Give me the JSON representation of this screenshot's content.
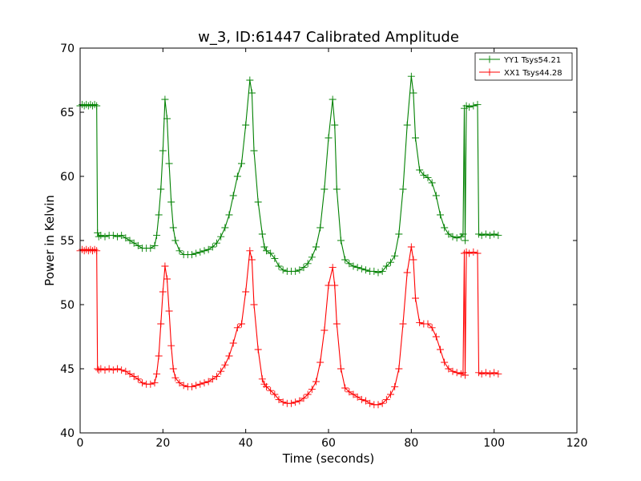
{
  "chart_data": {
    "type": "line",
    "title": "w_3, ID:61447 Calibrated Amplitude",
    "xlabel": "Time (seconds)",
    "ylabel": "Power in Kelvin",
    "xlim": [
      0,
      120
    ],
    "ylim": [
      40,
      70
    ],
    "xticks": [
      "0",
      "20",
      "40",
      "60",
      "80",
      "100",
      "120"
    ],
    "yticks": [
      "40",
      "45",
      "50",
      "55",
      "60",
      "65",
      "70"
    ],
    "grid": false,
    "legend_position": "top-right",
    "marker": "plus",
    "series": [
      {
        "name": "YY1 Tsys54.21",
        "color": "#008000",
        "points": [
          [
            0,
            65.5
          ],
          [
            0.5,
            65.6
          ],
          [
            1,
            65.5
          ],
          [
            1.5,
            65.6
          ],
          [
            2,
            65.5
          ],
          [
            2.5,
            65.6
          ],
          [
            3,
            65.5
          ],
          [
            3.5,
            65.6
          ],
          [
            4,
            65.5
          ],
          [
            4.2,
            55.6
          ],
          [
            4.5,
            55.3
          ],
          [
            5,
            55.4
          ],
          [
            6,
            55.3
          ],
          [
            7,
            55.4
          ],
          [
            8,
            55.4
          ],
          [
            9,
            55.3
          ],
          [
            10,
            55.4
          ],
          [
            11,
            55.2
          ],
          [
            12,
            55.0
          ],
          [
            13,
            54.8
          ],
          [
            14,
            54.6
          ],
          [
            15,
            54.4
          ],
          [
            16,
            54.4
          ],
          [
            17,
            54.4
          ],
          [
            18,
            54.6
          ],
          [
            18.5,
            55.4
          ],
          [
            19,
            57.0
          ],
          [
            19.5,
            59.0
          ],
          [
            20,
            62.0
          ],
          [
            20.5,
            66.0
          ],
          [
            21,
            64.5
          ],
          [
            21.5,
            61.0
          ],
          [
            22,
            58.0
          ],
          [
            22.5,
            56.0
          ],
          [
            23,
            55.0
          ],
          [
            24,
            54.2
          ],
          [
            25,
            53.9
          ],
          [
            26,
            53.9
          ],
          [
            27,
            53.9
          ],
          [
            28,
            54.0
          ],
          [
            29,
            54.1
          ],
          [
            30,
            54.2
          ],
          [
            31,
            54.3
          ],
          [
            32,
            54.5
          ],
          [
            33,
            54.8
          ],
          [
            34,
            55.3
          ],
          [
            35,
            56.0
          ],
          [
            36,
            57.0
          ],
          [
            37,
            58.5
          ],
          [
            38,
            60.0
          ],
          [
            39,
            61.0
          ],
          [
            40,
            64.0
          ],
          [
            41,
            67.5
          ],
          [
            41.5,
            66.5
          ],
          [
            42,
            62.0
          ],
          [
            43,
            58.0
          ],
          [
            44,
            55.5
          ],
          [
            44.5,
            54.5
          ],
          [
            45,
            54.2
          ],
          [
            46,
            54.0
          ],
          [
            47,
            53.6
          ],
          [
            48,
            53.0
          ],
          [
            49,
            52.7
          ],
          [
            50,
            52.6
          ],
          [
            51,
            52.6
          ],
          [
            52,
            52.6
          ],
          [
            53,
            52.7
          ],
          [
            54,
            52.9
          ],
          [
            55,
            53.2
          ],
          [
            56,
            53.7
          ],
          [
            57,
            54.5
          ],
          [
            58,
            56.0
          ],
          [
            59,
            59.0
          ],
          [
            60,
            63.0
          ],
          [
            61,
            66.0
          ],
          [
            61.5,
            64.0
          ],
          [
            62,
            59.0
          ],
          [
            63,
            55.0
          ],
          [
            64,
            53.5
          ],
          [
            65,
            53.2
          ],
          [
            66,
            53.0
          ],
          [
            67,
            52.9
          ],
          [
            68,
            52.8
          ],
          [
            69,
            52.7
          ],
          [
            70,
            52.6
          ],
          [
            71,
            52.6
          ],
          [
            72,
            52.5
          ],
          [
            73,
            52.6
          ],
          [
            74,
            53.0
          ],
          [
            75,
            53.3
          ],
          [
            76,
            53.8
          ],
          [
            77,
            55.5
          ],
          [
            78,
            59.0
          ],
          [
            79,
            64.0
          ],
          [
            80,
            67.8
          ],
          [
            80.5,
            66.5
          ],
          [
            81,
            63.0
          ],
          [
            82,
            60.5
          ],
          [
            83,
            60.1
          ],
          [
            84,
            59.9
          ],
          [
            85,
            59.5
          ],
          [
            86,
            58.5
          ],
          [
            87,
            57.0
          ],
          [
            88,
            56.0
          ],
          [
            89,
            55.5
          ],
          [
            90,
            55.3
          ],
          [
            91,
            55.2
          ],
          [
            92,
            55.3
          ],
          [
            92.5,
            55.5
          ],
          [
            92.8,
            65.3
          ],
          [
            93.0,
            55.0
          ],
          [
            93.3,
            65.5
          ],
          [
            94,
            65.4
          ],
          [
            95,
            65.5
          ],
          [
            96,
            65.6
          ],
          [
            96.3,
            55.5
          ],
          [
            97,
            55.4
          ],
          [
            98,
            55.5
          ],
          [
            99,
            55.4
          ],
          [
            100,
            55.5
          ],
          [
            101,
            55.4
          ]
        ]
      },
      {
        "name": "XX1 Tsys44.28",
        "color": "#ff0000",
        "points": [
          [
            0,
            54.2
          ],
          [
            0.5,
            54.3
          ],
          [
            1,
            54.2
          ],
          [
            1.5,
            54.3
          ],
          [
            2,
            54.2
          ],
          [
            2.5,
            54.3
          ],
          [
            3,
            54.2
          ],
          [
            3.5,
            54.3
          ],
          [
            4,
            54.2
          ],
          [
            4.2,
            45.0
          ],
          [
            4.5,
            44.9
          ],
          [
            5,
            45.0
          ],
          [
            6,
            44.9
          ],
          [
            7,
            45.0
          ],
          [
            8,
            44.9
          ],
          [
            9,
            45.0
          ],
          [
            10,
            44.9
          ],
          [
            11,
            44.8
          ],
          [
            12,
            44.6
          ],
          [
            13,
            44.4
          ],
          [
            14,
            44.2
          ],
          [
            15,
            43.9
          ],
          [
            16,
            43.8
          ],
          [
            17,
            43.8
          ],
          [
            18,
            43.9
          ],
          [
            18.5,
            44.6
          ],
          [
            19,
            46.0
          ],
          [
            19.5,
            48.5
          ],
          [
            20,
            51.0
          ],
          [
            20.5,
            53.0
          ],
          [
            21,
            52.0
          ],
          [
            21.5,
            49.5
          ],
          [
            22,
            46.8
          ],
          [
            22.5,
            45.0
          ],
          [
            23,
            44.3
          ],
          [
            24,
            43.9
          ],
          [
            25,
            43.7
          ],
          [
            26,
            43.6
          ],
          [
            27,
            43.6
          ],
          [
            28,
            43.7
          ],
          [
            29,
            43.8
          ],
          [
            30,
            43.9
          ],
          [
            31,
            44.0
          ],
          [
            32,
            44.2
          ],
          [
            33,
            44.4
          ],
          [
            34,
            44.8
          ],
          [
            35,
            45.3
          ],
          [
            36,
            46.0
          ],
          [
            37,
            47.0
          ],
          [
            38,
            48.2
          ],
          [
            39,
            48.5
          ],
          [
            40,
            51.0
          ],
          [
            41,
            54.2
          ],
          [
            41.5,
            53.5
          ],
          [
            42,
            50.0
          ],
          [
            43,
            46.5
          ],
          [
            44,
            44.2
          ],
          [
            44.5,
            43.8
          ],
          [
            45,
            43.6
          ],
          [
            46,
            43.3
          ],
          [
            47,
            43.0
          ],
          [
            48,
            42.6
          ],
          [
            49,
            42.4
          ],
          [
            50,
            42.3
          ],
          [
            51,
            42.3
          ],
          [
            52,
            42.4
          ],
          [
            53,
            42.5
          ],
          [
            54,
            42.7
          ],
          [
            55,
            43.0
          ],
          [
            56,
            43.4
          ],
          [
            57,
            44.0
          ],
          [
            58,
            45.5
          ],
          [
            59,
            48.0
          ],
          [
            60,
            51.5
          ],
          [
            61,
            52.9
          ],
          [
            61.5,
            51.5
          ],
          [
            62,
            48.5
          ],
          [
            63,
            45.0
          ],
          [
            64,
            43.5
          ],
          [
            65,
            43.2
          ],
          [
            66,
            43.0
          ],
          [
            67,
            42.8
          ],
          [
            68,
            42.6
          ],
          [
            69,
            42.5
          ],
          [
            70,
            42.3
          ],
          [
            71,
            42.2
          ],
          [
            72,
            42.2
          ],
          [
            73,
            42.3
          ],
          [
            74,
            42.6
          ],
          [
            75,
            43.0
          ],
          [
            76,
            43.6
          ],
          [
            77,
            45.0
          ],
          [
            78,
            48.5
          ],
          [
            79,
            52.5
          ],
          [
            80,
            54.5
          ],
          [
            80.5,
            53.5
          ],
          [
            81,
            50.5
          ],
          [
            82,
            48.6
          ],
          [
            83,
            48.5
          ],
          [
            84,
            48.5
          ],
          [
            85,
            48.2
          ],
          [
            86,
            47.5
          ],
          [
            87,
            46.5
          ],
          [
            88,
            45.5
          ],
          [
            89,
            45.0
          ],
          [
            90,
            44.8
          ],
          [
            91,
            44.7
          ],
          [
            92,
            44.6
          ],
          [
            92.5,
            44.7
          ],
          [
            92.8,
            54.0
          ],
          [
            93.0,
            44.5
          ],
          [
            93.3,
            54.1
          ],
          [
            94,
            54.0
          ],
          [
            95,
            54.1
          ],
          [
            96,
            54.0
          ],
          [
            96.3,
            44.7
          ],
          [
            97,
            44.6
          ],
          [
            98,
            44.7
          ],
          [
            99,
            44.6
          ],
          [
            100,
            44.7
          ],
          [
            101,
            44.6
          ]
        ]
      }
    ]
  }
}
